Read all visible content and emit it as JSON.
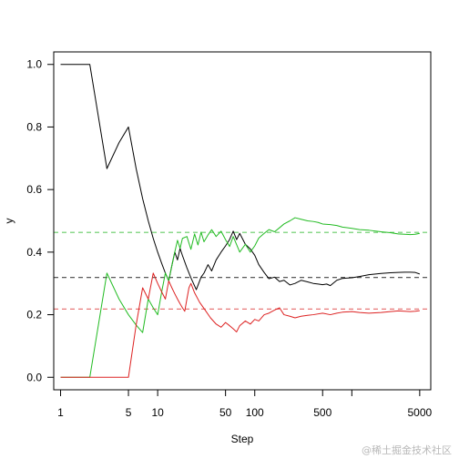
{
  "chart_data": {
    "type": "line",
    "xlabel": "Step",
    "ylabel": "y",
    "x_scale": "log",
    "xlim": [
      0.85,
      6500
    ],
    "ylim": [
      -0.04,
      1.04
    ],
    "x_ticks": [
      1,
      5,
      10,
      50,
      100,
      500,
      1000,
      5000
    ],
    "x_tick_labels": [
      "1",
      "5",
      "10",
      "50",
      "100",
      "500",
      "",
      "5000"
    ],
    "y_ticks": [
      0.0,
      0.2,
      0.4,
      0.6,
      0.8,
      1.0
    ],
    "y_tick_labels": [
      "0.0",
      "0.2",
      "0.4",
      "0.6",
      "0.8",
      "1.0"
    ],
    "grid": false,
    "legend": "none",
    "reference_lines": [
      {
        "y": 0.463,
        "color": "#66cc66"
      },
      {
        "y": 0.319,
        "color": "#444444"
      },
      {
        "y": 0.218,
        "color": "#e87878"
      }
    ],
    "series": [
      {
        "color": "#000000",
        "points": [
          [
            1,
            1.0
          ],
          [
            2,
            1.0
          ],
          [
            3,
            0.667
          ],
          [
            4,
            0.75
          ],
          [
            5,
            0.8
          ],
          [
            6,
            0.667
          ],
          [
            7,
            0.571
          ],
          [
            8,
            0.5
          ],
          [
            9,
            0.444
          ],
          [
            10,
            0.4
          ],
          [
            11,
            0.364
          ],
          [
            12,
            0.333
          ],
          [
            13,
            0.308
          ],
          [
            14,
            0.357
          ],
          [
            15,
            0.4
          ],
          [
            16,
            0.375
          ],
          [
            17,
            0.412
          ],
          [
            18,
            0.389
          ],
          [
            20,
            0.35
          ],
          [
            22,
            0.318
          ],
          [
            25,
            0.28
          ],
          [
            28,
            0.32
          ],
          [
            30,
            0.333
          ],
          [
            33,
            0.36
          ],
          [
            36,
            0.34
          ],
          [
            40,
            0.375
          ],
          [
            45,
            0.4
          ],
          [
            50,
            0.42
          ],
          [
            55,
            0.44
          ],
          [
            60,
            0.467
          ],
          [
            65,
            0.44
          ],
          [
            70,
            0.46
          ],
          [
            80,
            0.425
          ],
          [
            90,
            0.41
          ],
          [
            100,
            0.39
          ],
          [
            110,
            0.36
          ],
          [
            125,
            0.335
          ],
          [
            140,
            0.315
          ],
          [
            160,
            0.32
          ],
          [
            180,
            0.306
          ],
          [
            200,
            0.31
          ],
          [
            230,
            0.295
          ],
          [
            260,
            0.3
          ],
          [
            300,
            0.31
          ],
          [
            350,
            0.305
          ],
          [
            400,
            0.3
          ],
          [
            450,
            0.298
          ],
          [
            500,
            0.296
          ],
          [
            550,
            0.298
          ],
          [
            600,
            0.293
          ],
          [
            700,
            0.31
          ],
          [
            800,
            0.316
          ],
          [
            1000,
            0.318
          ],
          [
            1200,
            0.322
          ],
          [
            1500,
            0.328
          ],
          [
            2000,
            0.332
          ],
          [
            2500,
            0.334
          ],
          [
            3000,
            0.335
          ],
          [
            3500,
            0.336
          ],
          [
            4000,
            0.336
          ],
          [
            4500,
            0.335
          ],
          [
            5000,
            0.33
          ]
        ]
      },
      {
        "color": "#22bb22",
        "points": [
          [
            1,
            0.0
          ],
          [
            2,
            0.0
          ],
          [
            3,
            0.333
          ],
          [
            4,
            0.25
          ],
          [
            5,
            0.2
          ],
          [
            6,
            0.167
          ],
          [
            7,
            0.143
          ],
          [
            8,
            0.25
          ],
          [
            9,
            0.222
          ],
          [
            10,
            0.2
          ],
          [
            11,
            0.273
          ],
          [
            12,
            0.333
          ],
          [
            13,
            0.308
          ],
          [
            14,
            0.357
          ],
          [
            15,
            0.4
          ],
          [
            16,
            0.438
          ],
          [
            17,
            0.412
          ],
          [
            18,
            0.444
          ],
          [
            20,
            0.45
          ],
          [
            22,
            0.409
          ],
          [
            24,
            0.458
          ],
          [
            26,
            0.423
          ],
          [
            28,
            0.464
          ],
          [
            30,
            0.433
          ],
          [
            33,
            0.455
          ],
          [
            36,
            0.472
          ],
          [
            40,
            0.45
          ],
          [
            45,
            0.467
          ],
          [
            50,
            0.44
          ],
          [
            55,
            0.418
          ],
          [
            60,
            0.45
          ],
          [
            70,
            0.4
          ],
          [
            80,
            0.425
          ],
          [
            90,
            0.4
          ],
          [
            100,
            0.42
          ],
          [
            110,
            0.445
          ],
          [
            125,
            0.46
          ],
          [
            140,
            0.472
          ],
          [
            160,
            0.465
          ],
          [
            180,
            0.478
          ],
          [
            200,
            0.49
          ],
          [
            230,
            0.5
          ],
          [
            260,
            0.51
          ],
          [
            300,
            0.505
          ],
          [
            350,
            0.5
          ],
          [
            400,
            0.498
          ],
          [
            450,
            0.495
          ],
          [
            500,
            0.49
          ],
          [
            600,
            0.488
          ],
          [
            700,
            0.485
          ],
          [
            800,
            0.48
          ],
          [
            1000,
            0.476
          ],
          [
            1200,
            0.472
          ],
          [
            1500,
            0.47
          ],
          [
            2000,
            0.465
          ],
          [
            2500,
            0.462
          ],
          [
            3000,
            0.458
          ],
          [
            3500,
            0.457
          ],
          [
            4000,
            0.456
          ],
          [
            4500,
            0.457
          ],
          [
            5000,
            0.46
          ]
        ]
      },
      {
        "color": "#dd2222",
        "points": [
          [
            1,
            0.0
          ],
          [
            2,
            0.0
          ],
          [
            3,
            0.0
          ],
          [
            4,
            0.0
          ],
          [
            5,
            0.0
          ],
          [
            6,
            0.167
          ],
          [
            7,
            0.286
          ],
          [
            8,
            0.25
          ],
          [
            9,
            0.333
          ],
          [
            10,
            0.3
          ],
          [
            11,
            0.273
          ],
          [
            12,
            0.25
          ],
          [
            13,
            0.308
          ],
          [
            14,
            0.286
          ],
          [
            15,
            0.267
          ],
          [
            16,
            0.25
          ],
          [
            17,
            0.235
          ],
          [
            18,
            0.222
          ],
          [
            19,
            0.211
          ],
          [
            20,
            0.25
          ],
          [
            21,
            0.286
          ],
          [
            22,
            0.3
          ],
          [
            24,
            0.27
          ],
          [
            27,
            0.24
          ],
          [
            30,
            0.22
          ],
          [
            35,
            0.19
          ],
          [
            40,
            0.17
          ],
          [
            45,
            0.16
          ],
          [
            50,
            0.175
          ],
          [
            55,
            0.165
          ],
          [
            60,
            0.155
          ],
          [
            65,
            0.145
          ],
          [
            70,
            0.165
          ],
          [
            80,
            0.18
          ],
          [
            90,
            0.17
          ],
          [
            100,
            0.185
          ],
          [
            110,
            0.18
          ],
          [
            125,
            0.2
          ],
          [
            140,
            0.205
          ],
          [
            160,
            0.215
          ],
          [
            180,
            0.222
          ],
          [
            200,
            0.2
          ],
          [
            230,
            0.195
          ],
          [
            260,
            0.19
          ],
          [
            300,
            0.195
          ],
          [
            350,
            0.198
          ],
          [
            400,
            0.2
          ],
          [
            500,
            0.205
          ],
          [
            600,
            0.2
          ],
          [
            700,
            0.205
          ],
          [
            800,
            0.208
          ],
          [
            1000,
            0.21
          ],
          [
            1200,
            0.207
          ],
          [
            1500,
            0.205
          ],
          [
            2000,
            0.207
          ],
          [
            2500,
            0.21
          ],
          [
            3000,
            0.212
          ],
          [
            3500,
            0.211
          ],
          [
            4000,
            0.21
          ],
          [
            4500,
            0.211
          ],
          [
            5000,
            0.213
          ]
        ]
      }
    ]
  },
  "watermark": "@稀土掘金技术社区"
}
